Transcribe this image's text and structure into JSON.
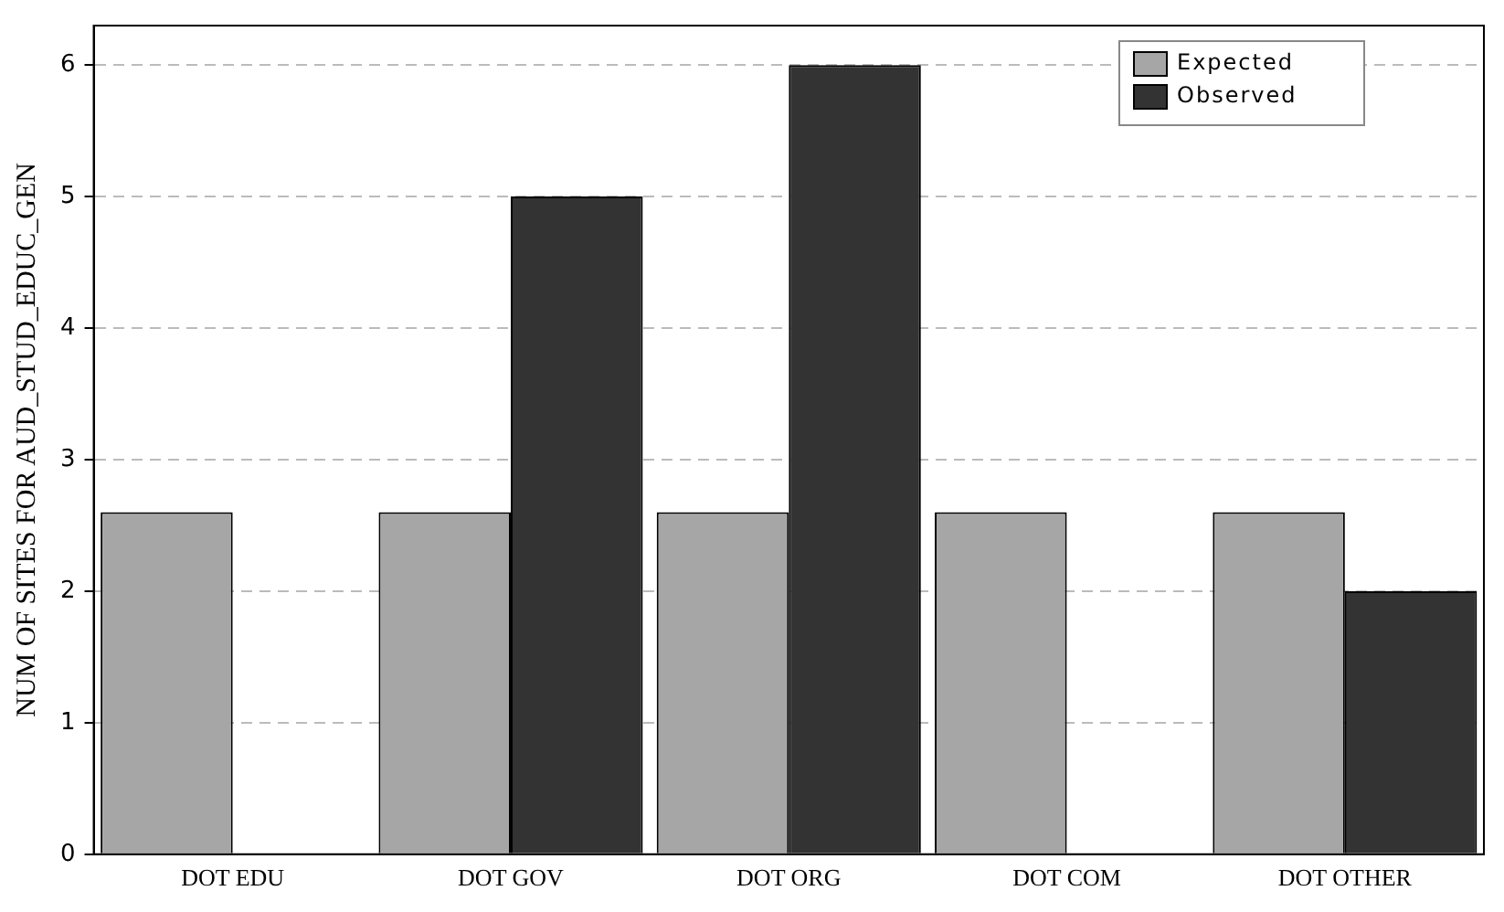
{
  "chart_data": {
    "type": "bar",
    "ylabel": "NUM OF SITES FOR AUD_STUD_EDUC_GEN",
    "categories": [
      "DOT EDU",
      "DOT GOV",
      "DOT ORG",
      "DOT COM",
      "DOT OTHER"
    ],
    "series": [
      {
        "name": "Expected",
        "color": "#a6a6a6",
        "values": [
          2.6,
          2.6,
          2.6,
          2.6,
          2.6
        ]
      },
      {
        "name": "Observed",
        "color": "#333333",
        "values": [
          0,
          5,
          6,
          0,
          2
        ]
      }
    ],
    "ylim": [
      0,
      6.3
    ],
    "yticks": [
      0,
      1,
      2,
      3,
      4,
      5,
      6
    ],
    "grid": "y",
    "legend": "top right"
  }
}
